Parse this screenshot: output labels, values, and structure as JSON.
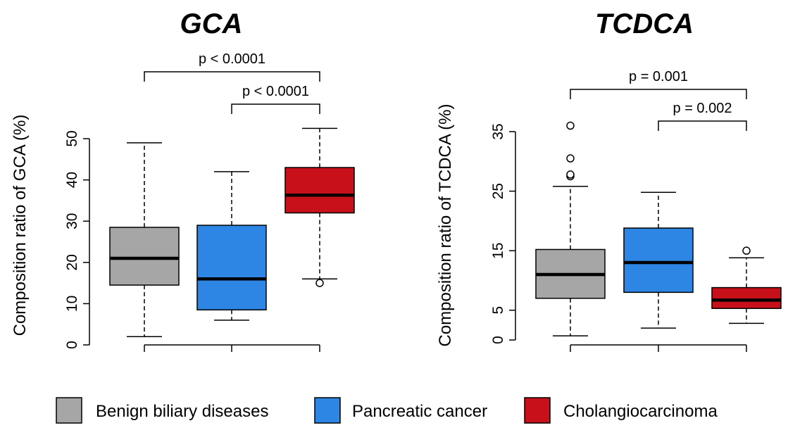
{
  "chart_data": [
    {
      "type": "box",
      "title": "GCA",
      "ylabel": "Composition ratio of GCA (%)",
      "ylim": [
        0,
        54
      ],
      "yticks": [
        0,
        10,
        20,
        30,
        40,
        50
      ],
      "groups": [
        {
          "name": "Benign biliary diseases",
          "color": "#a6a6a6",
          "whisker_low": 2,
          "q1": 14.5,
          "median": 21,
          "q3": 28.5,
          "whisker_high": 49,
          "outliers": []
        },
        {
          "name": "Pancreatic cancer",
          "color": "#2e86e4",
          "whisker_low": 6,
          "q1": 8.5,
          "median": 16,
          "q3": 29,
          "whisker_high": 42,
          "outliers": []
        },
        {
          "name": "Cholangiocarcinoma",
          "color": "#c8101a",
          "whisker_low": 16,
          "q1": 32,
          "median": 36.3,
          "q3": 43,
          "whisker_high": 52.5,
          "outliers": [
            15
          ]
        }
      ],
      "comparisons": [
        {
          "from": 0,
          "to": 2,
          "label": "p < 0.0001"
        },
        {
          "from": 1,
          "to": 2,
          "label": "p < 0.0001"
        }
      ]
    },
    {
      "type": "box",
      "title": "TCDCA",
      "ylabel": "Composition ratio of TCDCA (%)",
      "ylim": [
        0,
        37
      ],
      "yticks": [
        0,
        5,
        15,
        25,
        35
      ],
      "groups": [
        {
          "name": "Benign biliary diseases",
          "color": "#a6a6a6",
          "whisker_low": 0.7,
          "q1": 7,
          "median": 11,
          "q3": 15.2,
          "whisker_high": 25.8,
          "outliers": [
            27.5,
            27.8,
            30.5,
            36
          ]
        },
        {
          "name": "Pancreatic cancer",
          "color": "#2e86e4",
          "whisker_low": 2,
          "q1": 8,
          "median": 13,
          "q3": 18.8,
          "whisker_high": 24.8,
          "outliers": []
        },
        {
          "name": "Cholangiocarcinoma",
          "color": "#c8101a",
          "whisker_low": 2.8,
          "q1": 5.3,
          "median": 6.7,
          "q3": 8.8,
          "whisker_high": 13.8,
          "outliers": [
            15
          ]
        }
      ],
      "comparisons": [
        {
          "from": 0,
          "to": 2,
          "label": "p = 0.001"
        },
        {
          "from": 1,
          "to": 2,
          "label": "p = 0.002"
        }
      ]
    }
  ],
  "legend": {
    "items": [
      {
        "label": "Benign biliary diseases",
        "color": "#a6a6a6"
      },
      {
        "label": "Pancreatic cancer",
        "color": "#2e86e4"
      },
      {
        "label": "Cholangiocarcinoma",
        "color": "#c8101a"
      }
    ]
  }
}
